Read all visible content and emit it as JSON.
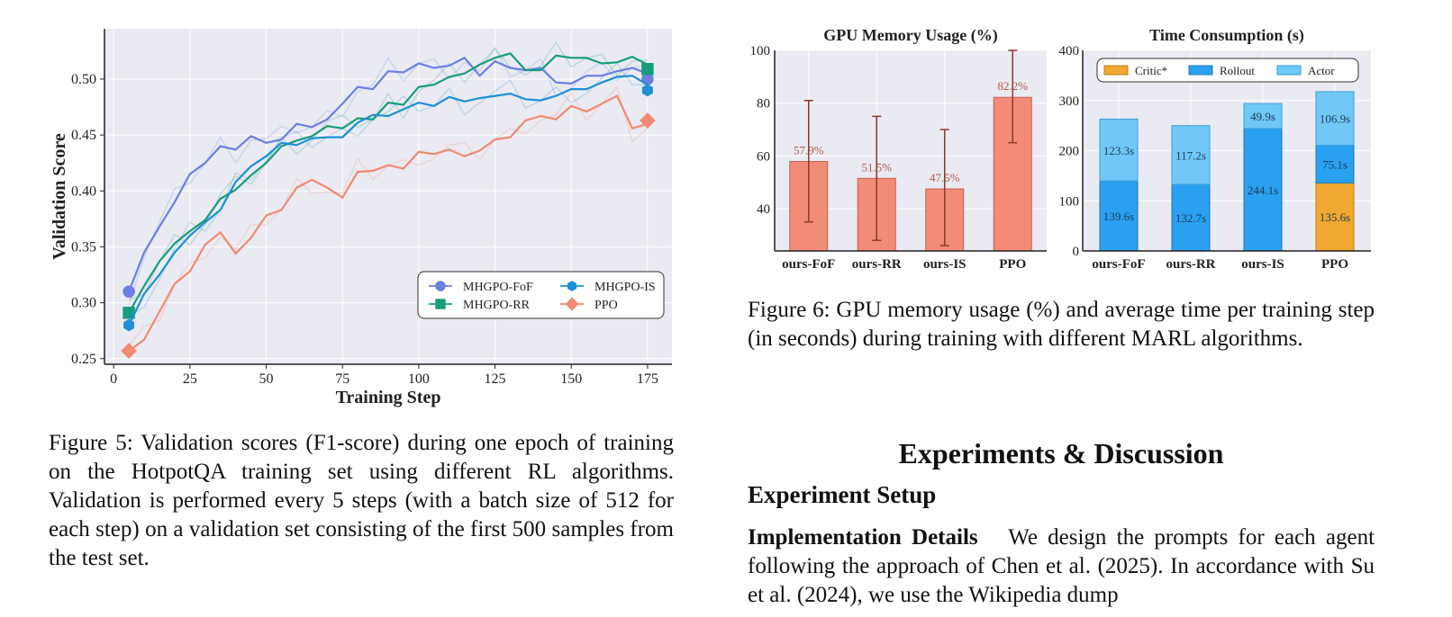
{
  "figure5": {
    "caption": "Figure 5: Validation scores (F1-score) during one epoch of training on the HotpotQA training set using different RL algorithms. Validation is performed every 5 steps (with a batch size of 512 for each step) on a validation set consisting of the first 500 samples from the test set."
  },
  "figure6": {
    "caption": "Figure 6: GPU memory usage (%) and average time per training step (in seconds) during training with different MARL algorithms."
  },
  "section": {
    "title": "Experiments & Discussion",
    "subtitle": "Experiment Setup",
    "para_lead": "Implementation Details",
    "para_text": "We design the prompts for each agent following the approach of Chen et al. (2025). In accordance with Su et al. (2024), we use the Wikipedia dump"
  },
  "colors": {
    "fof": "#6b7fe3",
    "rr": "#179c7d",
    "is": "#1f8fd6",
    "ppo": "#f08a72",
    "gpu_bar": "#f28c78",
    "critic": "#f0a830",
    "rollout": "#2aa1f0",
    "actor": "#6fc8f8",
    "plot_bg": "#eaeaf2"
  },
  "chart_data": [
    {
      "type": "line",
      "title": "",
      "xlabel": "Training Step",
      "ylabel": "Validation Score",
      "xlim": [
        -3,
        183
      ],
      "ylim": [
        0.245,
        0.545
      ],
      "xticks": [
        0,
        25,
        50,
        75,
        100,
        125,
        150,
        175
      ],
      "yticks": [
        0.25,
        0.3,
        0.35,
        0.4,
        0.45,
        0.5
      ],
      "ytick_labels": [
        "0.25",
        "0.30",
        "0.35",
        "0.40",
        "0.45",
        "0.50"
      ],
      "grid": true,
      "legend_position": "lower-right",
      "x": [
        5,
        10,
        15,
        20,
        25,
        30,
        35,
        40,
        45,
        50,
        55,
        60,
        65,
        70,
        75,
        80,
        85,
        90,
        95,
        100,
        105,
        110,
        115,
        120,
        125,
        130,
        135,
        140,
        145,
        150,
        155,
        160,
        165,
        170,
        175
      ],
      "series": [
        {
          "name": "MHGPO-FoF",
          "color_key": "fof",
          "marker": "circle",
          "values": [
            0.31,
            0.345,
            0.368,
            0.39,
            0.415,
            0.425,
            0.44,
            0.437,
            0.449,
            0.443,
            0.446,
            0.46,
            0.457,
            0.464,
            0.478,
            0.493,
            0.491,
            0.507,
            0.506,
            0.514,
            0.51,
            0.512,
            0.519,
            0.503,
            0.516,
            0.51,
            0.508,
            0.51,
            0.497,
            0.496,
            0.503,
            0.503,
            0.507,
            0.51,
            0.505
          ],
          "end_value": 0.5
        },
        {
          "name": "MHGPO-RR",
          "color_key": "rr",
          "marker": "square",
          "values": [
            0.291,
            0.315,
            0.337,
            0.353,
            0.364,
            0.374,
            0.393,
            0.401,
            0.414,
            0.425,
            0.44,
            0.445,
            0.449,
            0.458,
            0.456,
            0.465,
            0.464,
            0.479,
            0.477,
            0.493,
            0.495,
            0.502,
            0.505,
            0.513,
            0.519,
            0.523,
            0.508,
            0.508,
            0.521,
            0.519,
            0.519,
            0.514,
            0.515,
            0.52,
            0.513
          ],
          "end_value": 0.509
        },
        {
          "name": "MHGPO-IS",
          "color_key": "is",
          "marker": "hexagon",
          "values": [
            0.28,
            0.308,
            0.325,
            0.345,
            0.36,
            0.372,
            0.383,
            0.408,
            0.422,
            0.431,
            0.443,
            0.441,
            0.447,
            0.448,
            0.448,
            0.461,
            0.468,
            0.467,
            0.473,
            0.479,
            0.476,
            0.484,
            0.48,
            0.483,
            0.485,
            0.487,
            0.482,
            0.481,
            0.485,
            0.491,
            0.491,
            0.497,
            0.502,
            0.503,
            0.495
          ],
          "end_value": 0.49
        },
        {
          "name": "PPO",
          "color_key": "ppo",
          "marker": "diamond",
          "values": [
            0.257,
            0.267,
            0.292,
            0.317,
            0.328,
            0.352,
            0.363,
            0.344,
            0.358,
            0.378,
            0.383,
            0.403,
            0.41,
            0.403,
            0.394,
            0.417,
            0.418,
            0.423,
            0.42,
            0.435,
            0.433,
            0.437,
            0.431,
            0.436,
            0.446,
            0.448,
            0.463,
            0.467,
            0.464,
            0.476,
            0.471,
            0.478,
            0.485,
            0.456,
            0.46
          ],
          "end_value": 0.463
        }
      ]
    },
    {
      "type": "bar",
      "title": "GPU Memory Usage (%)",
      "categories": [
        "ours-FoF",
        "ours-RR",
        "ours-IS",
        "PPO"
      ],
      "values": [
        57.9,
        51.5,
        47.5,
        82.2
      ],
      "value_labels": [
        "57.9%",
        "51.5%",
        "47.5%",
        "82.2%"
      ],
      "error_low": [
        35,
        28,
        26,
        65
      ],
      "error_high": [
        81,
        75,
        70,
        100
      ],
      "ylim": [
        24,
        100
      ],
      "yticks": [
        40,
        60,
        80,
        100
      ],
      "grid": true
    },
    {
      "type": "bar",
      "stacked": true,
      "title": "Time Consumption (s)",
      "categories": [
        "ours-FoF",
        "ours-RR",
        "ours-IS",
        "PPO"
      ],
      "series": [
        {
          "name": "Critic*",
          "color_key": "critic",
          "values": [
            0,
            0,
            0,
            135.6
          ],
          "labels": [
            "",
            "",
            "",
            "135.6s"
          ]
        },
        {
          "name": "Rollout",
          "color_key": "rollout",
          "values": [
            139.6,
            132.7,
            244.1,
            75.1
          ],
          "labels": [
            "139.6s",
            "132.7s",
            "244.1s",
            "75.1s"
          ]
        },
        {
          "name": "Actor",
          "color_key": "actor",
          "values": [
            123.3,
            117.2,
            49.9,
            106.9
          ],
          "labels": [
            "123.3s",
            "117.2s",
            "49.9s",
            "106.9s"
          ]
        }
      ],
      "ylim": [
        0,
        400
      ],
      "yticks": [
        0,
        100,
        200,
        300,
        400
      ],
      "legend_position": "top",
      "grid": true
    }
  ]
}
